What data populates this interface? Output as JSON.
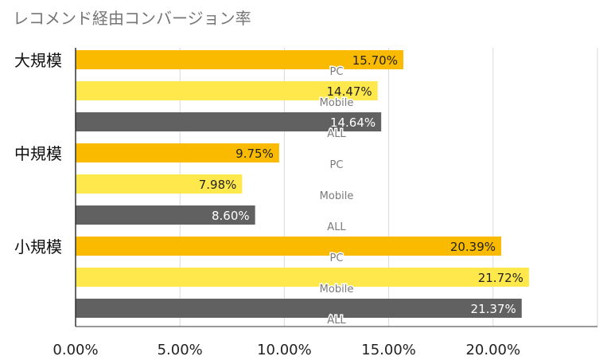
{
  "chart_data": {
    "type": "bar",
    "orientation": "horizontal",
    "title": "レコメンド経由コンバージョン率",
    "xlabel": "",
    "ylabel": "",
    "xlim": [
      0,
      0.25
    ],
    "x_ticks": [
      "0.00%",
      "5.00%",
      "10.00%",
      "15.00%",
      "20.00%"
    ],
    "grid": true,
    "legend": "none",
    "groups": [
      {
        "label": "大規模",
        "bars": [
          {
            "category": "PC",
            "value": 0.157,
            "value_label": "15.70%"
          },
          {
            "category": "Mobile",
            "value": 0.1447,
            "value_label": "14.47%"
          },
          {
            "category": "ALL",
            "value": 0.1464,
            "value_label": "14.64%"
          }
        ]
      },
      {
        "label": "中規模",
        "bars": [
          {
            "category": "PC",
            "value": 0.0975,
            "value_label": "9.75%"
          },
          {
            "category": "Mobile",
            "value": 0.0798,
            "value_label": "7.98%"
          },
          {
            "category": "ALL",
            "value": 0.086,
            "value_label": "8.60%"
          }
        ]
      },
      {
        "label": "小規模",
        "bars": [
          {
            "category": "PC",
            "value": 0.2039,
            "value_label": "20.39%"
          },
          {
            "category": "Mobile",
            "value": 0.2172,
            "value_label": "21.72%"
          },
          {
            "category": "ALL",
            "value": 0.2137,
            "value_label": "21.37%"
          }
        ]
      }
    ],
    "colors": {
      "PC": "#f9ba00",
      "Mobile": "#ffe84c",
      "ALL": "#616161",
      "grid": "#d9d9d9",
      "axis": "#333333",
      "label_on_light": "#222222",
      "label_on_dark": "#ffffff",
      "category_text": "#7a7a7a"
    }
  }
}
